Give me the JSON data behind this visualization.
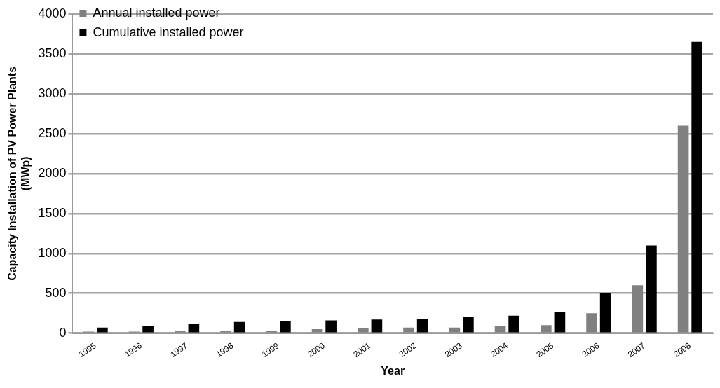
{
  "chart_data": {
    "type": "bar",
    "xlabel": "Year",
    "ylabel": "Capacity Installation of PV Power Plants (MWp)",
    "categories": [
      "1995",
      "1996",
      "1997",
      "1998",
      "1999",
      "2000",
      "2001",
      "2002",
      "2003",
      "2004",
      "2005",
      "2006",
      "2007",
      "2008"
    ],
    "series": [
      {
        "name": "Annual installed power",
        "color": "#808080",
        "values": [
          20,
          20,
          30,
          30,
          30,
          50,
          60,
          70,
          70,
          90,
          100,
          250,
          600,
          2600
        ]
      },
      {
        "name": "Cumulative installed power",
        "color": "#000000",
        "values": [
          70,
          90,
          120,
          140,
          150,
          160,
          170,
          180,
          200,
          220,
          260,
          500,
          1100,
          3650
        ]
      }
    ],
    "ylim": [
      0,
      4000
    ],
    "yticks": [
      0,
      500,
      1000,
      1500,
      2000,
      2500,
      3000,
      3500,
      4000
    ],
    "grid": "y",
    "legend": "top left"
  }
}
